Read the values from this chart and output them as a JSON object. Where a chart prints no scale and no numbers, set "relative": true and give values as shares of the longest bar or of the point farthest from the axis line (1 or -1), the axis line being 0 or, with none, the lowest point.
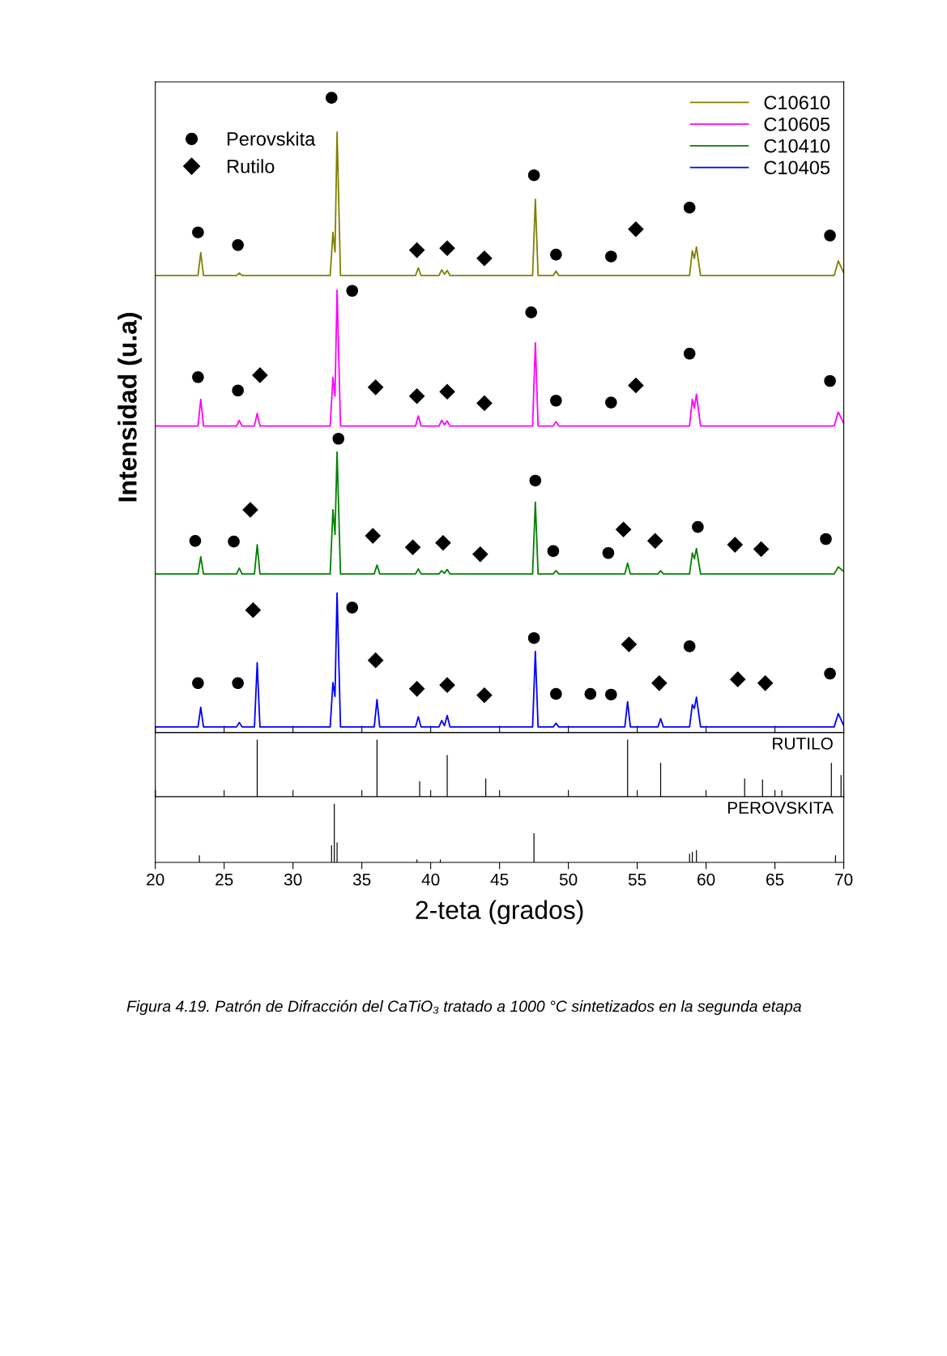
{
  "chart_data": [
    {
      "type": "line",
      "relative": true,
      "ylabel": "Intensidad (u.a)",
      "xlim": [
        20,
        70
      ],
      "xticks": [
        20,
        25,
        30,
        35,
        40,
        45,
        50,
        55,
        60,
        65,
        70
      ],
      "tick_labels": false,
      "legend": "top right",
      "series": [
        {
          "name": "C10610",
          "color": "#808000",
          "x": [
            20,
            23.1,
            23.3,
            23.5,
            25.9,
            26.1,
            26.3,
            32.7,
            32.9,
            33.05,
            33.2,
            33.45,
            38.9,
            39.1,
            39.3,
            40.6,
            40.8,
            41.0,
            41.2,
            41.4,
            47.4,
            47.6,
            47.8,
            48.9,
            49.1,
            49.3,
            58.8,
            59.0,
            59.15,
            59.3,
            59.6,
            69.3,
            69.6,
            70
          ],
          "values": [
            0.72,
            0.72,
            0.756,
            0.72,
            0.72,
            0.724,
            0.72,
            0.72,
            0.788,
            0.757,
            0.946,
            0.72,
            0.72,
            0.732,
            0.72,
            0.72,
            0.729,
            0.722,
            0.728,
            0.72,
            0.72,
            0.84,
            0.72,
            0.72,
            0.727,
            0.72,
            0.72,
            0.759,
            0.747,
            0.765,
            0.72,
            0.72,
            0.743,
            0.724
          ]
        },
        {
          "name": "C10605",
          "color": "#ff00ff",
          "x": [
            20,
            23.1,
            23.3,
            23.5,
            25.9,
            26.1,
            26.3,
            27.2,
            27.4,
            27.6,
            32.7,
            32.9,
            33.05,
            33.2,
            33.45,
            38.9,
            39.1,
            39.3,
            40.6,
            40.8,
            41.0,
            41.2,
            41.4,
            47.4,
            47.6,
            47.8,
            48.9,
            49.1,
            49.3,
            58.8,
            59.0,
            59.15,
            59.3,
            59.6,
            69.3,
            69.6,
            70
          ],
          "values": [
            0.483,
            0.483,
            0.525,
            0.483,
            0.483,
            0.492,
            0.483,
            0.483,
            0.503,
            0.483,
            0.483,
            0.56,
            0.53,
            0.697,
            0.483,
            0.483,
            0.499,
            0.483,
            0.483,
            0.492,
            0.485,
            0.491,
            0.483,
            0.483,
            0.614,
            0.483,
            0.483,
            0.49,
            0.483,
            0.483,
            0.525,
            0.511,
            0.533,
            0.483,
            0.483,
            0.505,
            0.487
          ]
        },
        {
          "name": "C10410",
          "color": "#008000",
          "x": [
            20,
            23.1,
            23.3,
            23.5,
            25.9,
            26.1,
            26.3,
            27.2,
            27.4,
            27.6,
            32.7,
            32.9,
            33.05,
            33.2,
            33.45,
            35.9,
            36.1,
            36.3,
            38.9,
            39.1,
            39.3,
            40.6,
            40.8,
            41.0,
            41.2,
            41.4,
            47.4,
            47.6,
            47.8,
            48.9,
            49.1,
            49.3,
            54.1,
            54.3,
            54.5,
            56.5,
            56.7,
            56.9,
            58.8,
            59.0,
            59.15,
            59.3,
            59.6,
            69.3,
            69.6,
            70
          ],
          "values": [
            0.25,
            0.25,
            0.277,
            0.25,
            0.25,
            0.259,
            0.25,
            0.25,
            0.296,
            0.25,
            0.25,
            0.351,
            0.312,
            0.442,
            0.25,
            0.25,
            0.264,
            0.25,
            0.25,
            0.258,
            0.25,
            0.25,
            0.255,
            0.251,
            0.257,
            0.25,
            0.25,
            0.363,
            0.25,
            0.25,
            0.255,
            0.25,
            0.25,
            0.267,
            0.25,
            0.25,
            0.255,
            0.25,
            0.25,
            0.283,
            0.274,
            0.29,
            0.25,
            0.25,
            0.261,
            0.254
          ]
        },
        {
          "name": "C10405",
          "color": "#0000ff",
          "x": [
            20,
            23.1,
            23.3,
            23.5,
            25.9,
            26.1,
            26.3,
            27.2,
            27.4,
            27.6,
            32.7,
            32.9,
            33.05,
            33.2,
            33.45,
            35.9,
            36.1,
            36.3,
            38.9,
            39.1,
            39.3,
            40.6,
            40.8,
            41.0,
            41.2,
            41.4,
            47.4,
            47.6,
            47.8,
            48.9,
            49.1,
            49.3,
            54.1,
            54.3,
            54.5,
            56.5,
            56.7,
            56.9,
            58.8,
            59.0,
            59.15,
            59.3,
            59.6,
            69.3,
            69.6,
            70
          ],
          "values": [
            0.009,
            0.009,
            0.04,
            0.009,
            0.009,
            0.016,
            0.009,
            0.009,
            0.11,
            0.009,
            0.009,
            0.079,
            0.057,
            0.22,
            0.009,
            0.009,
            0.052,
            0.009,
            0.009,
            0.025,
            0.009,
            0.009,
            0.019,
            0.011,
            0.027,
            0.009,
            0.009,
            0.128,
            0.009,
            0.009,
            0.015,
            0.009,
            0.009,
            0.049,
            0.009,
            0.009,
            0.022,
            0.009,
            0.009,
            0.044,
            0.038,
            0.056,
            0.009,
            0.009,
            0.03,
            0.011
          ]
        },
        {
          "name": "Perovskita",
          "type": "scatter",
          "marker": "circle",
          "color": "#000000",
          "x": [
            23.1,
            26.0,
            32.8,
            47.5,
            49.1,
            53.1,
            58.8,
            69.0,
            23.1,
            26.0,
            34.3,
            47.3,
            49.1,
            53.1,
            58.8,
            69.0,
            22.9,
            25.7,
            33.3,
            47.6,
            48.9,
            52.9,
            59.4,
            68.7,
            23.1,
            26.0,
            34.3,
            47.5,
            49.1,
            51.6,
            53.1,
            58.8,
            69.0
          ],
          "values": [
            0.788,
            0.768,
            1.0,
            0.878,
            0.753,
            0.75,
            0.827,
            0.783,
            0.56,
            0.539,
            0.696,
            0.662,
            0.523,
            0.52,
            0.597,
            0.554,
            0.302,
            0.301,
            0.463,
            0.397,
            0.286,
            0.283,
            0.324,
            0.305,
            0.078,
            0.078,
            0.197,
            0.149,
            0.061,
            0.061,
            0.06,
            0.136,
            0.093
          ]
        },
        {
          "name": "Rutilo",
          "type": "scatter",
          "marker": "diamond",
          "color": "#000000",
          "x": [
            39.0,
            41.2,
            43.9,
            54.9,
            27.6,
            36.0,
            39.0,
            41.2,
            43.9,
            54.9,
            26.9,
            35.8,
            38.7,
            40.9,
            43.6,
            54.0,
            56.3,
            62.1,
            64.0,
            27.1,
            36.0,
            39.0,
            41.2,
            43.9,
            54.4,
            56.6,
            62.3,
            64.3
          ],
          "values": [
            0.76,
            0.763,
            0.747,
            0.793,
            0.563,
            0.544,
            0.53,
            0.537,
            0.519,
            0.547,
            0.351,
            0.31,
            0.292,
            0.299,
            0.281,
            0.32,
            0.302,
            0.296,
            0.289,
            0.193,
            0.114,
            0.069,
            0.075,
            0.059,
            0.139,
            0.078,
            0.084,
            0.078
          ]
        }
      ]
    },
    {
      "type": "bar",
      "relative": true,
      "title": "RUTILO",
      "xlim": [
        20,
        70
      ],
      "xticks": [
        20,
        25,
        30,
        35,
        40,
        45,
        50,
        55,
        60,
        65,
        70
      ],
      "tick_labels": false,
      "color": "#000000",
      "x": [
        27.4,
        36.1,
        39.2,
        41.2,
        44.0,
        54.3,
        56.7,
        62.8,
        64.1,
        65.5,
        69.1,
        69.8
      ],
      "values": [
        1.0,
        1.0,
        0.27,
        0.73,
        0.32,
        1.0,
        0.59,
        0.32,
        0.3,
        0.11,
        0.59,
        0.38
      ]
    },
    {
      "type": "bar",
      "relative": true,
      "title": "PEROVSKITA",
      "xlabel": "2-teta (grados)",
      "xlim": [
        20,
        70
      ],
      "xticks": [
        20,
        25,
        30,
        35,
        40,
        45,
        50,
        55,
        60,
        65,
        70
      ],
      "tick_labels": "x",
      "color": "#000000",
      "x": [
        23.2,
        32.8,
        33.0,
        33.2,
        39.0,
        40.7,
        47.5,
        58.8,
        59.0,
        59.3,
        69.4
      ],
      "values": [
        0.12,
        0.29,
        1.0,
        0.34,
        0.05,
        0.05,
        0.5,
        0.15,
        0.18,
        0.21,
        0.12
      ],
      "annotations": [
        "Figura 4.19. Patrón de Difracción del CaTiO₃ tratado a 1000 °C sintetizados en la segunda etapa"
      ]
    }
  ]
}
